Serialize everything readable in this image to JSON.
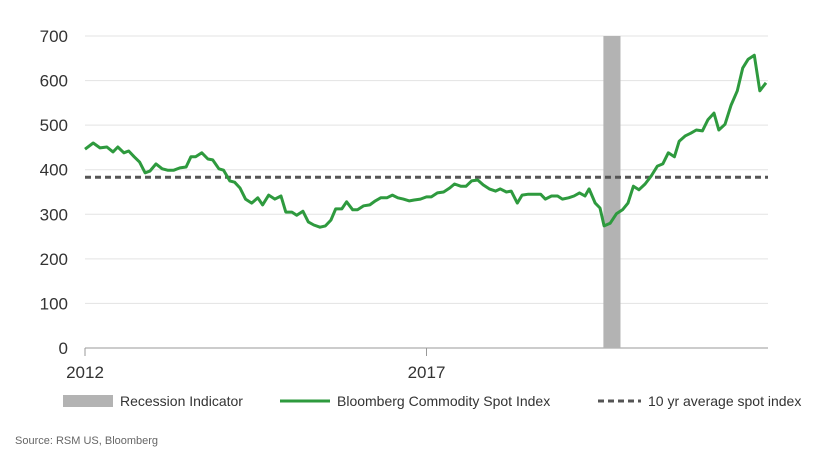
{
  "chart_data": {
    "type": "line",
    "source": "Source: RSM US, Bloomberg",
    "xlim": [
      2012,
      2022
    ],
    "xticks": [
      2012,
      2017
    ],
    "ylim": [
      0,
      700
    ],
    "yticks": [
      0,
      100,
      200,
      300,
      400,
      500,
      600,
      700
    ],
    "grid": true,
    "recession": {
      "name": "Recession Indicator",
      "color": "#b3b3b3",
      "x": [
        2019.59,
        2019.84
      ]
    },
    "average": {
      "name": "10 yr average spot index",
      "color": "#555555",
      "value": 383
    },
    "series": [
      {
        "name": "Bloomberg Commodity Spot Index",
        "color": "#2e9a3e",
        "x": [
          2012.0,
          2012.12,
          2012.22,
          2012.32,
          2012.41,
          2012.48,
          2012.57,
          2012.64,
          2012.72,
          2012.8,
          2012.88,
          2012.95,
          2013.04,
          2013.13,
          2013.21,
          2013.3,
          2013.39,
          2013.48,
          2013.55,
          2013.62,
          2013.71,
          2013.8,
          2013.87,
          2013.96,
          2014.03,
          2014.12,
          2014.19,
          2014.27,
          2014.35,
          2014.44,
          2014.53,
          2014.6,
          2014.69,
          2014.78,
          2014.87,
          2014.94,
          2015.03,
          2015.1,
          2015.19,
          2015.27,
          2015.35,
          2015.44,
          2015.52,
          2015.6,
          2015.67,
          2015.76,
          2015.83,
          2015.92,
          2015.99,
          2016.08,
          2016.17,
          2016.25,
          2016.33,
          2016.42,
          2016.5,
          2016.58,
          2016.66,
          2016.75,
          2016.82,
          2016.91,
          2017.0,
          2017.07,
          2017.16,
          2017.25,
          2017.34,
          2017.41,
          2017.5,
          2017.58,
          2017.66,
          2017.75,
          2017.83,
          2017.92,
          2018.01,
          2018.08,
          2018.17,
          2018.24,
          2018.33,
          2018.4,
          2018.49,
          2018.58,
          2018.67,
          2018.74,
          2018.83,
          2018.92,
          2018.99,
          2019.08,
          2019.16,
          2019.24,
          2019.32,
          2019.38,
          2019.47,
          2019.54,
          2019.6,
          2019.69,
          2019.78,
          2019.87,
          2019.95,
          2020.03,
          2020.11,
          2020.2,
          2020.29,
          2020.38,
          2020.46,
          2020.54,
          2020.63,
          2020.7,
          2020.79,
          2020.87,
          2020.95,
          2021.04,
          2021.12,
          2021.21,
          2021.28,
          2021.37,
          2021.46,
          2021.55,
          2021.63,
          2021.71,
          2021.8,
          2021.88,
          2021.97
        ],
        "values": [
          446,
          460,
          449,
          451,
          440,
          451,
          438,
          442,
          429,
          417,
          393,
          397,
          413,
          402,
          399,
          399,
          404,
          406,
          429,
          429,
          438,
          424,
          422,
          402,
          399,
          375,
          372,
          359,
          334,
          325,
          337,
          321,
          343,
          334,
          341,
          305,
          305,
          298,
          307,
          283,
          276,
          271,
          274,
          287,
          312,
          312,
          328,
          310,
          310,
          319,
          321,
          330,
          337,
          337,
          343,
          337,
          334,
          330,
          332,
          334,
          339,
          339,
          348,
          350,
          359,
          368,
          363,
          363,
          375,
          377,
          366,
          357,
          352,
          357,
          350,
          352,
          325,
          343,
          345,
          345,
          345,
          334,
          341,
          341,
          334,
          337,
          341,
          348,
          341,
          357,
          325,
          314,
          274,
          280,
          301,
          310,
          325,
          363,
          355,
          368,
          386,
          408,
          413,
          438,
          429,
          464,
          476,
          482,
          489,
          487,
          512,
          527,
          489,
          502,
          545,
          577,
          628,
          648,
          657,
          577,
          595
        ]
      }
    ]
  }
}
